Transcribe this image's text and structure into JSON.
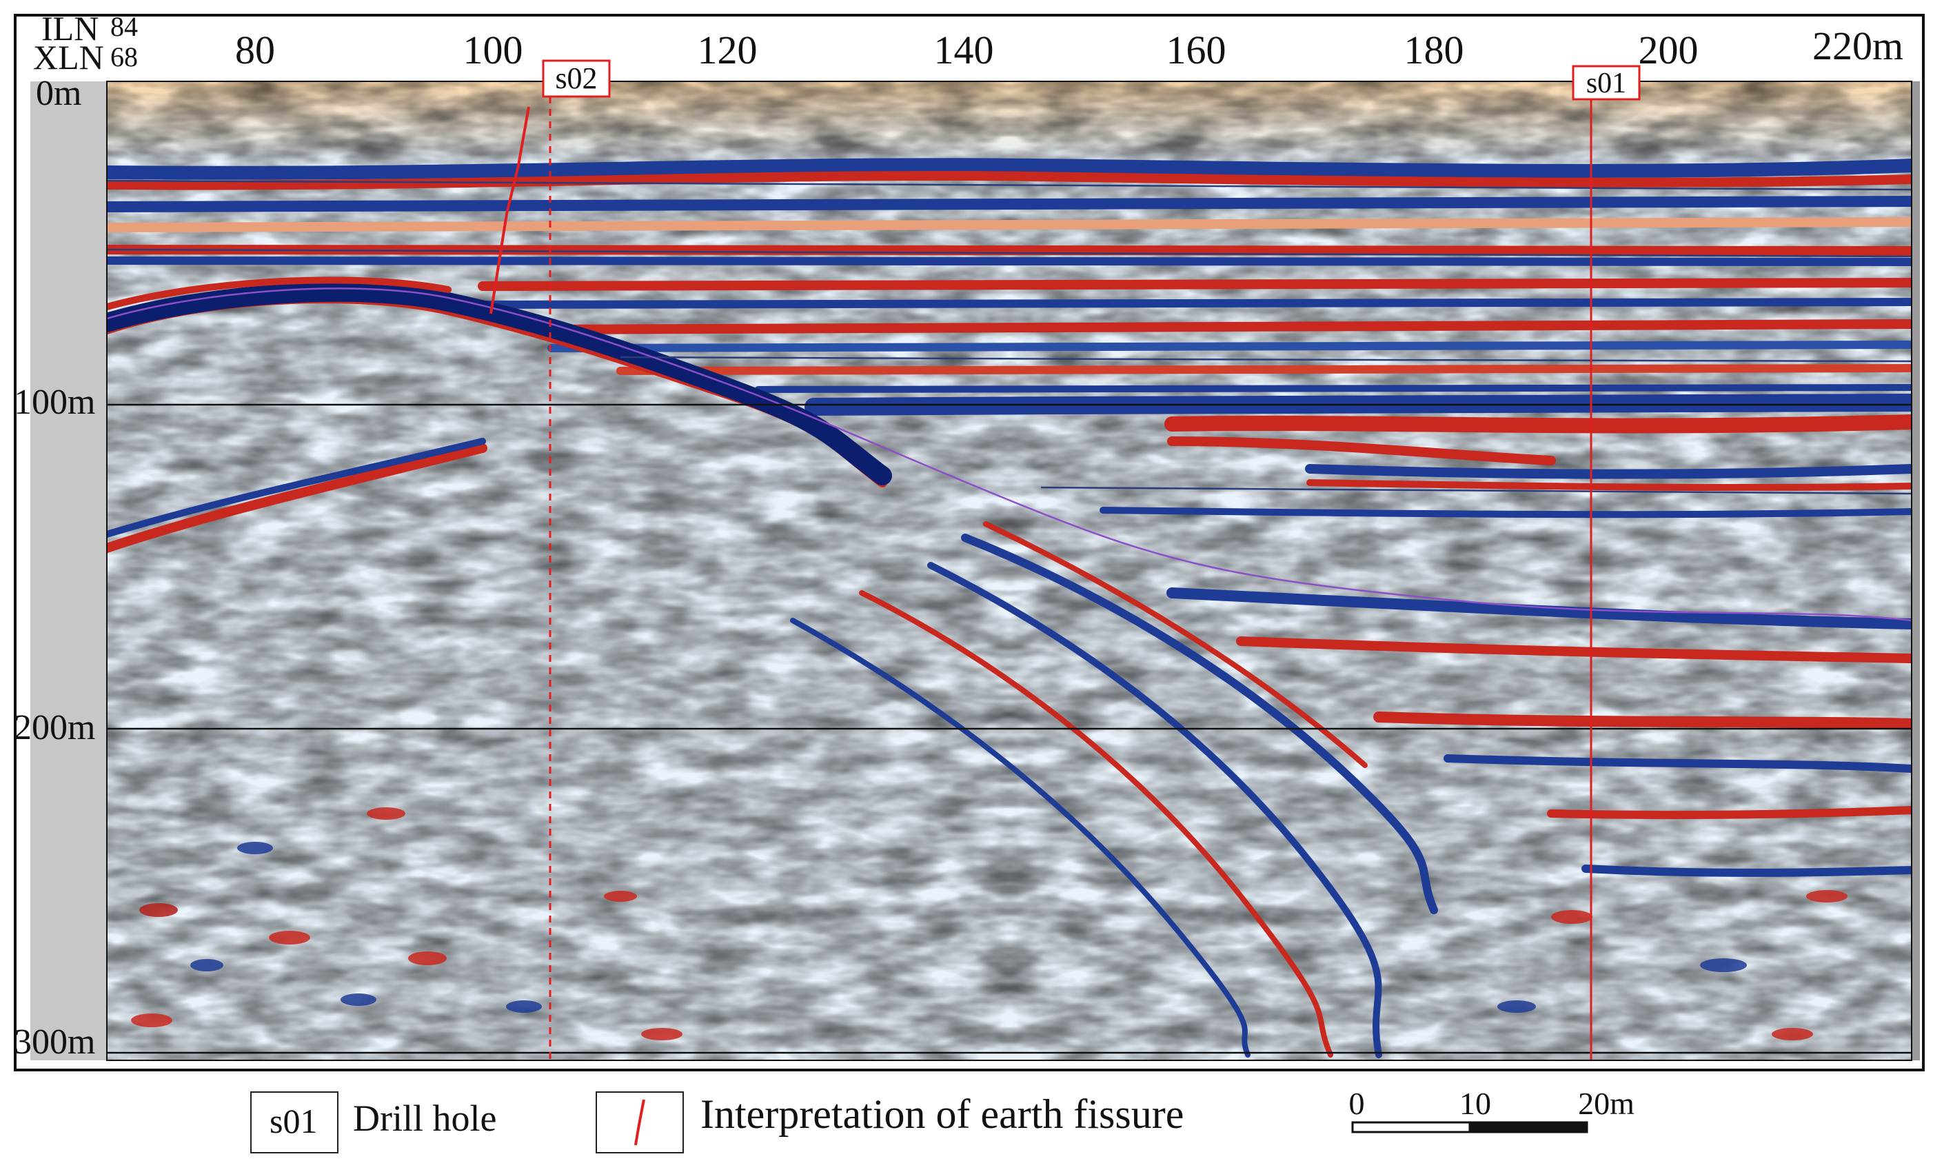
{
  "axes": {
    "iln_label": "ILN",
    "iln_value": "84",
    "xln_label": "XLN",
    "xln_value": "68",
    "x_ticks": [
      "80",
      "100",
      "120",
      "140",
      "160",
      "180",
      "200",
      "220m"
    ],
    "y_ticks": [
      "0m",
      "100m",
      "200m",
      "300m"
    ]
  },
  "markers": [
    {
      "label": "s02",
      "style": "dashed"
    },
    {
      "label": "s01",
      "style": "solid"
    }
  ],
  "legend": {
    "drill_hole_code": "s01",
    "drill_hole_label": "Drill hole",
    "fissure_label": "Interpretation of earth fissure"
  },
  "scale_bar": {
    "ticks": [
      "0",
      "10",
      "20m"
    ]
  },
  "colors": {
    "positive": "#c8281e",
    "negative": "#1e3c96",
    "background": "#eaf3fb",
    "marker": "#e02020",
    "interpretation_line": "#8a4fc9"
  }
}
